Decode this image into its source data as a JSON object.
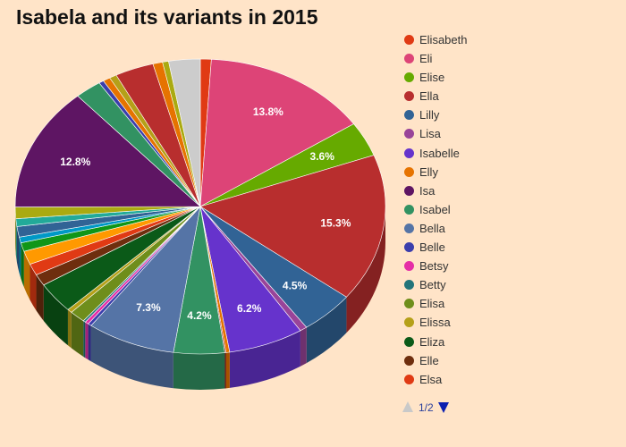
{
  "title": "Isabela and its variants in 2015",
  "pager": {
    "text": "1/2"
  },
  "chart_data": {
    "type": "pie",
    "title": "Isabela and its variants in 2015",
    "style": "3d",
    "legend_position": "right",
    "slices": [
      {
        "name": "Elisabeth",
        "value": 0.9,
        "color": "#e03a14"
      },
      {
        "name": "Eli",
        "value": 13.8,
        "color": "#dd4477",
        "label": "13.8%"
      },
      {
        "name": "Elise",
        "value": 3.6,
        "color": "#66aa00",
        "label": "3.6%"
      },
      {
        "name": "Ella",
        "value": 15.3,
        "color": "#b82e2e",
        "label": "15.3%"
      },
      {
        "name": "Lilly",
        "value": 4.5,
        "color": "#316395",
        "label": "4.5%"
      },
      {
        "name": "Lisa",
        "value": 0.6,
        "color": "#994499"
      },
      {
        "name": "Isabelle",
        "value": 6.2,
        "color": "#6633cc",
        "label": "6.2%"
      },
      {
        "name": "Elly",
        "value": 0.3,
        "color": "#e67300"
      },
      {
        "name": "Isa",
        "value": 0.1,
        "color": "#8b0707"
      },
      {
        "name": "Isabel",
        "value": 4.2,
        "color": "#329262",
        "label": "4.2%"
      },
      {
        "name": "Bella",
        "value": 7.3,
        "color": "#5574a6",
        "label": "7.3%"
      },
      {
        "name": "Belle",
        "value": 0.3,
        "color": "#3b3eac"
      },
      {
        "name": "Betsy",
        "value": 0.3,
        "color": "#e52ea6"
      },
      {
        "name": "Betty",
        "value": 0.2,
        "color": "#22747a"
      },
      {
        "name": "Elisa",
        "value": 1.3,
        "color": "#6f8e1b"
      },
      {
        "name": "Elissa",
        "value": 0.4,
        "color": "#b5a018"
      },
      {
        "name": "Eliza",
        "value": 3.2,
        "color": "#0b5a18"
      },
      {
        "name": "Elle",
        "value": 1.2,
        "color": "#6e2e0e"
      },
      {
        "name": "Elsa",
        "value": 1.2,
        "color": "#e03a14"
      },
      {
        "name": "",
        "value": 1.4,
        "color": "#ff9900"
      },
      {
        "name": "",
        "value": 0.9,
        "color": "#109618"
      },
      {
        "name": "",
        "value": 0.6,
        "color": "#0099c6"
      },
      {
        "name": "",
        "value": 1.1,
        "color": "#316395"
      },
      {
        "name": "",
        "value": 0.8,
        "color": "#22aa99"
      },
      {
        "name": "",
        "value": 1.2,
        "color": "#aaaa11"
      },
      {
        "name": "Isa",
        "value": 12.8,
        "color": "#5e1563",
        "label": "12.8%"
      },
      {
        "name": "",
        "value": 2.2,
        "color": "#329262"
      },
      {
        "name": "",
        "value": 0.4,
        "color": "#3b3eac"
      },
      {
        "name": "",
        "value": 0.6,
        "color": "#e67300"
      },
      {
        "name": "",
        "value": 0.6,
        "color": "#b5a018"
      },
      {
        "name": "",
        "value": 3.2,
        "color": "#b82e2e"
      },
      {
        "name": "",
        "value": 0.8,
        "color": "#e67300"
      },
      {
        "name": "",
        "value": 0.5,
        "color": "#aaaa11"
      },
      {
        "name": "",
        "value": 2.6,
        "color": "#cccccc"
      }
    ],
    "legend": [
      {
        "label": "Elisabeth",
        "color": "#e03a14"
      },
      {
        "label": "Eli",
        "color": "#dd4477"
      },
      {
        "label": "Elise",
        "color": "#66aa00"
      },
      {
        "label": "Ella",
        "color": "#b82e2e"
      },
      {
        "label": "Lilly",
        "color": "#316395"
      },
      {
        "label": "Lisa",
        "color": "#994499"
      },
      {
        "label": "Isabelle",
        "color": "#6633cc"
      },
      {
        "label": "Elly",
        "color": "#e67300"
      },
      {
        "label": "Isa",
        "color": "#5e1563"
      },
      {
        "label": "Isabel",
        "color": "#329262"
      },
      {
        "label": "Bella",
        "color": "#5574a6"
      },
      {
        "label": "Belle",
        "color": "#3b3eac"
      },
      {
        "label": "Betsy",
        "color": "#e52ea6"
      },
      {
        "label": "Betty",
        "color": "#22747a"
      },
      {
        "label": "Elisa",
        "color": "#6f8e1b"
      },
      {
        "label": "Elissa",
        "color": "#b5a018"
      },
      {
        "label": "Eliza",
        "color": "#0b5a18"
      },
      {
        "label": "Elle",
        "color": "#6e2e0e"
      },
      {
        "label": "Elsa",
        "color": "#e03a14"
      }
    ]
  }
}
